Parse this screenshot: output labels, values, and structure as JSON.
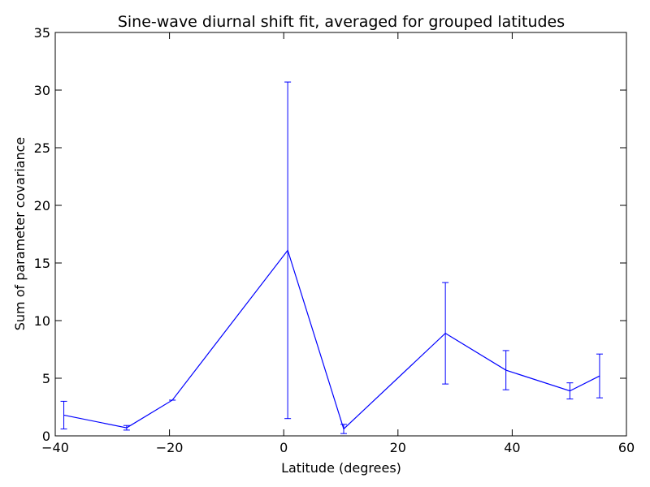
{
  "chart_data": {
    "type": "line",
    "title": "Sine-wave diurnal shift fit, averaged for grouped latitudes",
    "xlabel": "Latitude (degrees)",
    "ylabel": "Sum of parameter covariance",
    "xlim": [
      -40,
      60
    ],
    "ylim": [
      0,
      35
    ],
    "x_ticks": [
      -40,
      -20,
      0,
      20,
      40,
      60
    ],
    "x_tick_labels": [
      "−40",
      "−20",
      "0",
      "20",
      "40",
      "60"
    ],
    "y_ticks": [
      0,
      5,
      10,
      15,
      20,
      25,
      30,
      35
    ],
    "y_tick_labels": [
      "0",
      "5",
      "10",
      "15",
      "20",
      "25",
      "30",
      "35"
    ],
    "grid": false,
    "legend": "none",
    "series": [
      {
        "color": "#0000ff",
        "points": [
          {
            "x": -38.5,
            "y": 1.8,
            "err": 1.2
          },
          {
            "x": -27.5,
            "y": 0.7,
            "err": 0.2
          },
          {
            "x": -19.5,
            "y": 3.1,
            "err": 0.0
          },
          {
            "x": 0.7,
            "y": 16.1,
            "err": 14.6
          },
          {
            "x": 10.5,
            "y": 0.6,
            "err": 0.4
          },
          {
            "x": 28.3,
            "y": 8.9,
            "err": 4.4
          },
          {
            "x": 38.9,
            "y": 5.7,
            "err": 1.7
          },
          {
            "x": 50.1,
            "y": 3.9,
            "err": 0.7
          },
          {
            "x": 55.3,
            "y": 5.2,
            "err": 1.9
          }
        ]
      }
    ]
  }
}
